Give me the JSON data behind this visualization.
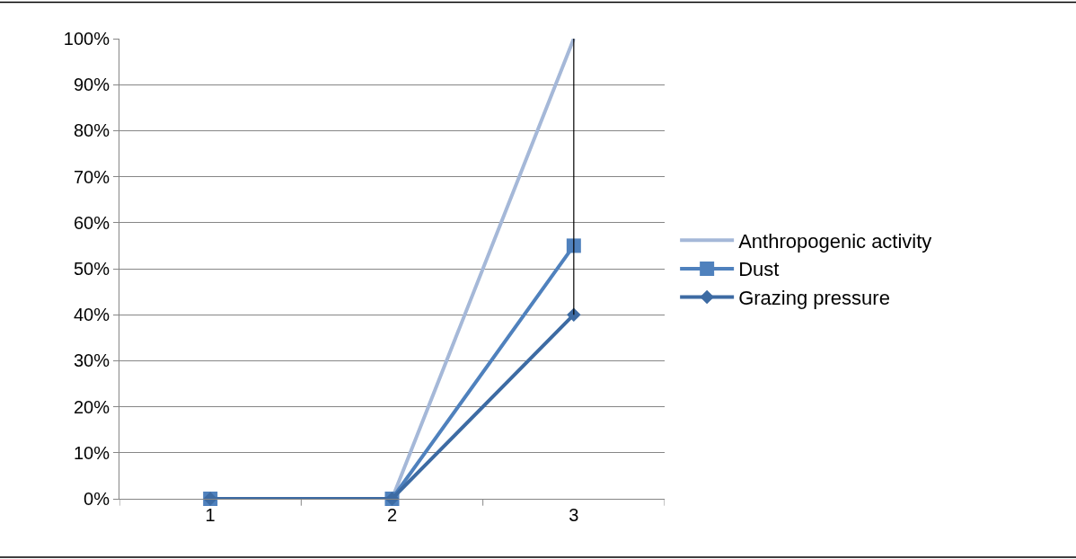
{
  "chart_data": {
    "type": "line",
    "categories": [
      "1",
      "2",
      "3"
    ],
    "series": [
      {
        "name": "Anthropogenic activity",
        "color": "#a5b8d8",
        "values": [
          0,
          0,
          100
        ],
        "marker": "none"
      },
      {
        "name": "Dust",
        "color": "#4f81bd",
        "values": [
          0,
          0,
          55
        ],
        "marker": "square"
      },
      {
        "name": "Grazing pressure",
        "color": "#3d6ba3",
        "values": [
          0,
          0,
          40
        ],
        "marker": "diamond"
      },
      {
        "color": "#000000",
        "x": [
          "3",
          "3"
        ],
        "values": [
          40,
          100
        ],
        "marker": "none"
      }
    ],
    "ylim": [
      0,
      100
    ],
    "yticks": [
      {
        "value": 0,
        "label": "0%"
      },
      {
        "value": 10,
        "label": "10%"
      },
      {
        "value": 20,
        "label": "20%"
      },
      {
        "value": 30,
        "label": "30%"
      },
      {
        "value": 40,
        "label": "40%"
      },
      {
        "value": 50,
        "label": "50%"
      },
      {
        "value": 60,
        "label": "60%"
      },
      {
        "value": 70,
        "label": "70%"
      },
      {
        "value": 80,
        "label": "80%"
      },
      {
        "value": 90,
        "label": "90%"
      },
      {
        "value": 100,
        "label": "100%"
      }
    ],
    "grid": "y",
    "legend": "right"
  }
}
